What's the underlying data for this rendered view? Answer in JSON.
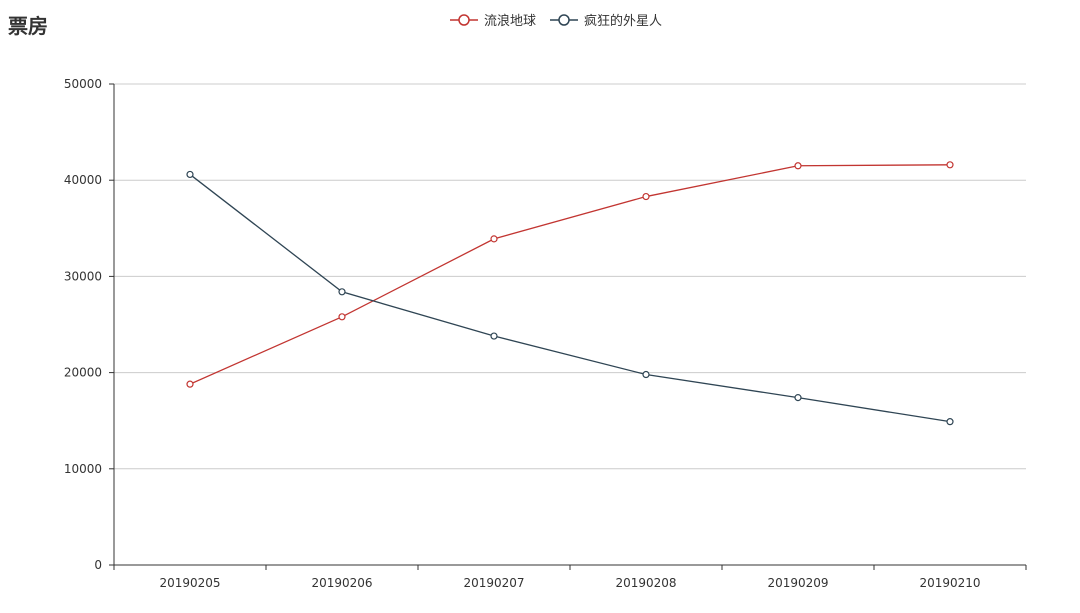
{
  "title": "票房",
  "legend": [
    {
      "name": "流浪地球",
      "color": "#c23531"
    },
    {
      "name": "疯狂的外星人",
      "color": "#2f4554"
    }
  ],
  "chart_data": {
    "type": "line",
    "title": "票房",
    "categories": [
      "20190205",
      "20190206",
      "20190207",
      "20190208",
      "20190209",
      "20190210"
    ],
    "series": [
      {
        "name": "流浪地球",
        "color": "#c23531",
        "values": [
          18800,
          25800,
          33900,
          38300,
          41500,
          41600
        ]
      },
      {
        "name": "疯狂的外星人",
        "color": "#2f4554",
        "values": [
          40600,
          28400,
          23800,
          19800,
          17400,
          14900
        ]
      }
    ],
    "ylim": [
      0,
      50000
    ],
    "yticks": [
      0,
      10000,
      20000,
      30000,
      40000,
      50000
    ],
    "grid": true,
    "legend_position": "top-center"
  }
}
